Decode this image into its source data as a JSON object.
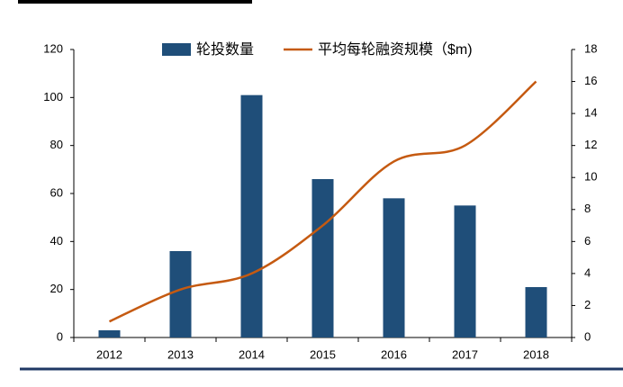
{
  "chart_data": {
    "type": "bar-line",
    "categories": [
      "2012",
      "2013",
      "2014",
      "2015",
      "2016",
      "2017",
      "2018"
    ],
    "series": [
      {
        "name": "轮投数量",
        "type": "bar",
        "color": "#1f4e79",
        "values": [
          3,
          36,
          101,
          66,
          58,
          55,
          21
        ]
      },
      {
        "name": "平均每轮融资规模（$m)",
        "type": "line",
        "axis": "y2",
        "color": "#c55a11",
        "values": [
          1,
          3,
          4,
          7,
          11,
          12,
          16
        ]
      }
    ],
    "ylim": [
      0,
      120
    ],
    "yticks": [
      0,
      20,
      40,
      60,
      80,
      100,
      120
    ],
    "y2lim": [
      0,
      18
    ],
    "y2ticks": [
      0,
      2,
      4,
      6,
      8,
      10,
      12,
      14,
      16,
      18
    ],
    "grid": false
  }
}
